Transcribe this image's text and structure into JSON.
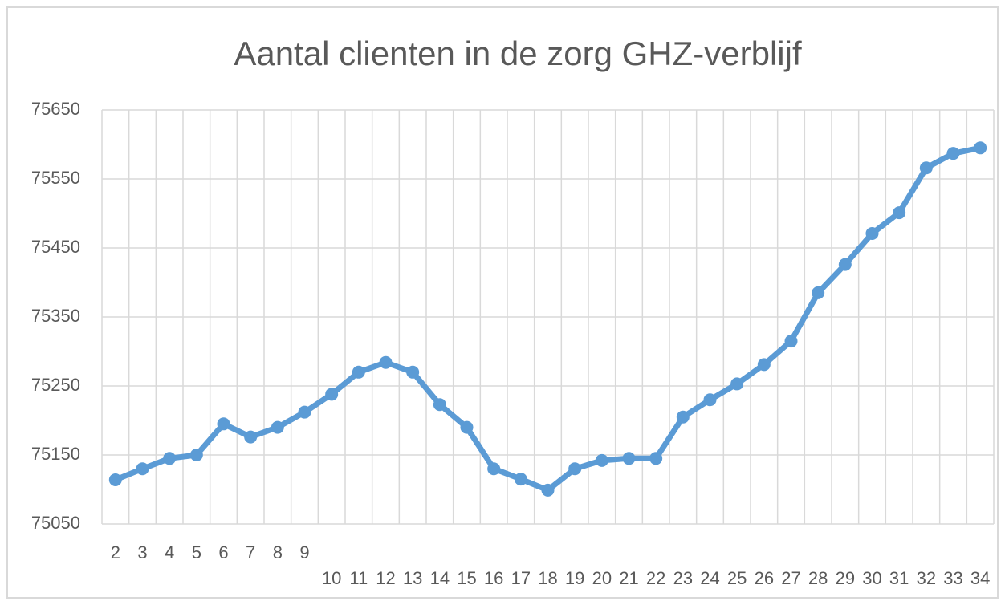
{
  "chart_data": {
    "type": "line",
    "title": "Aantal clienten in de zorg GHZ-verblijf",
    "categories": [
      "2",
      "3",
      "4",
      "5",
      "6",
      "7",
      "8",
      "9",
      "10",
      "11",
      "12",
      "13",
      "14",
      "15",
      "16",
      "17",
      "18",
      "19",
      "20",
      "21",
      "22",
      "23",
      "24",
      "25",
      "26",
      "27",
      "28",
      "29",
      "30",
      "31",
      "32",
      "33",
      "34"
    ],
    "values": [
      75114,
      75130,
      75145,
      75150,
      75195,
      75176,
      75190,
      75212,
      75238,
      75270,
      75284,
      75270,
      75223,
      75190,
      75130,
      75115,
      75099,
      75130,
      75142,
      75145,
      75145,
      75205,
      75230,
      75253,
      75281,
      75315,
      75385,
      75426,
      75471,
      75501,
      75566,
      75587,
      75595
    ],
    "color": "#5b9bd5",
    "ylim": [
      75050,
      75650
    ],
    "yticks": [
      75050,
      75150,
      75250,
      75350,
      75450,
      75550,
      75650
    ],
    "grid": true
  }
}
